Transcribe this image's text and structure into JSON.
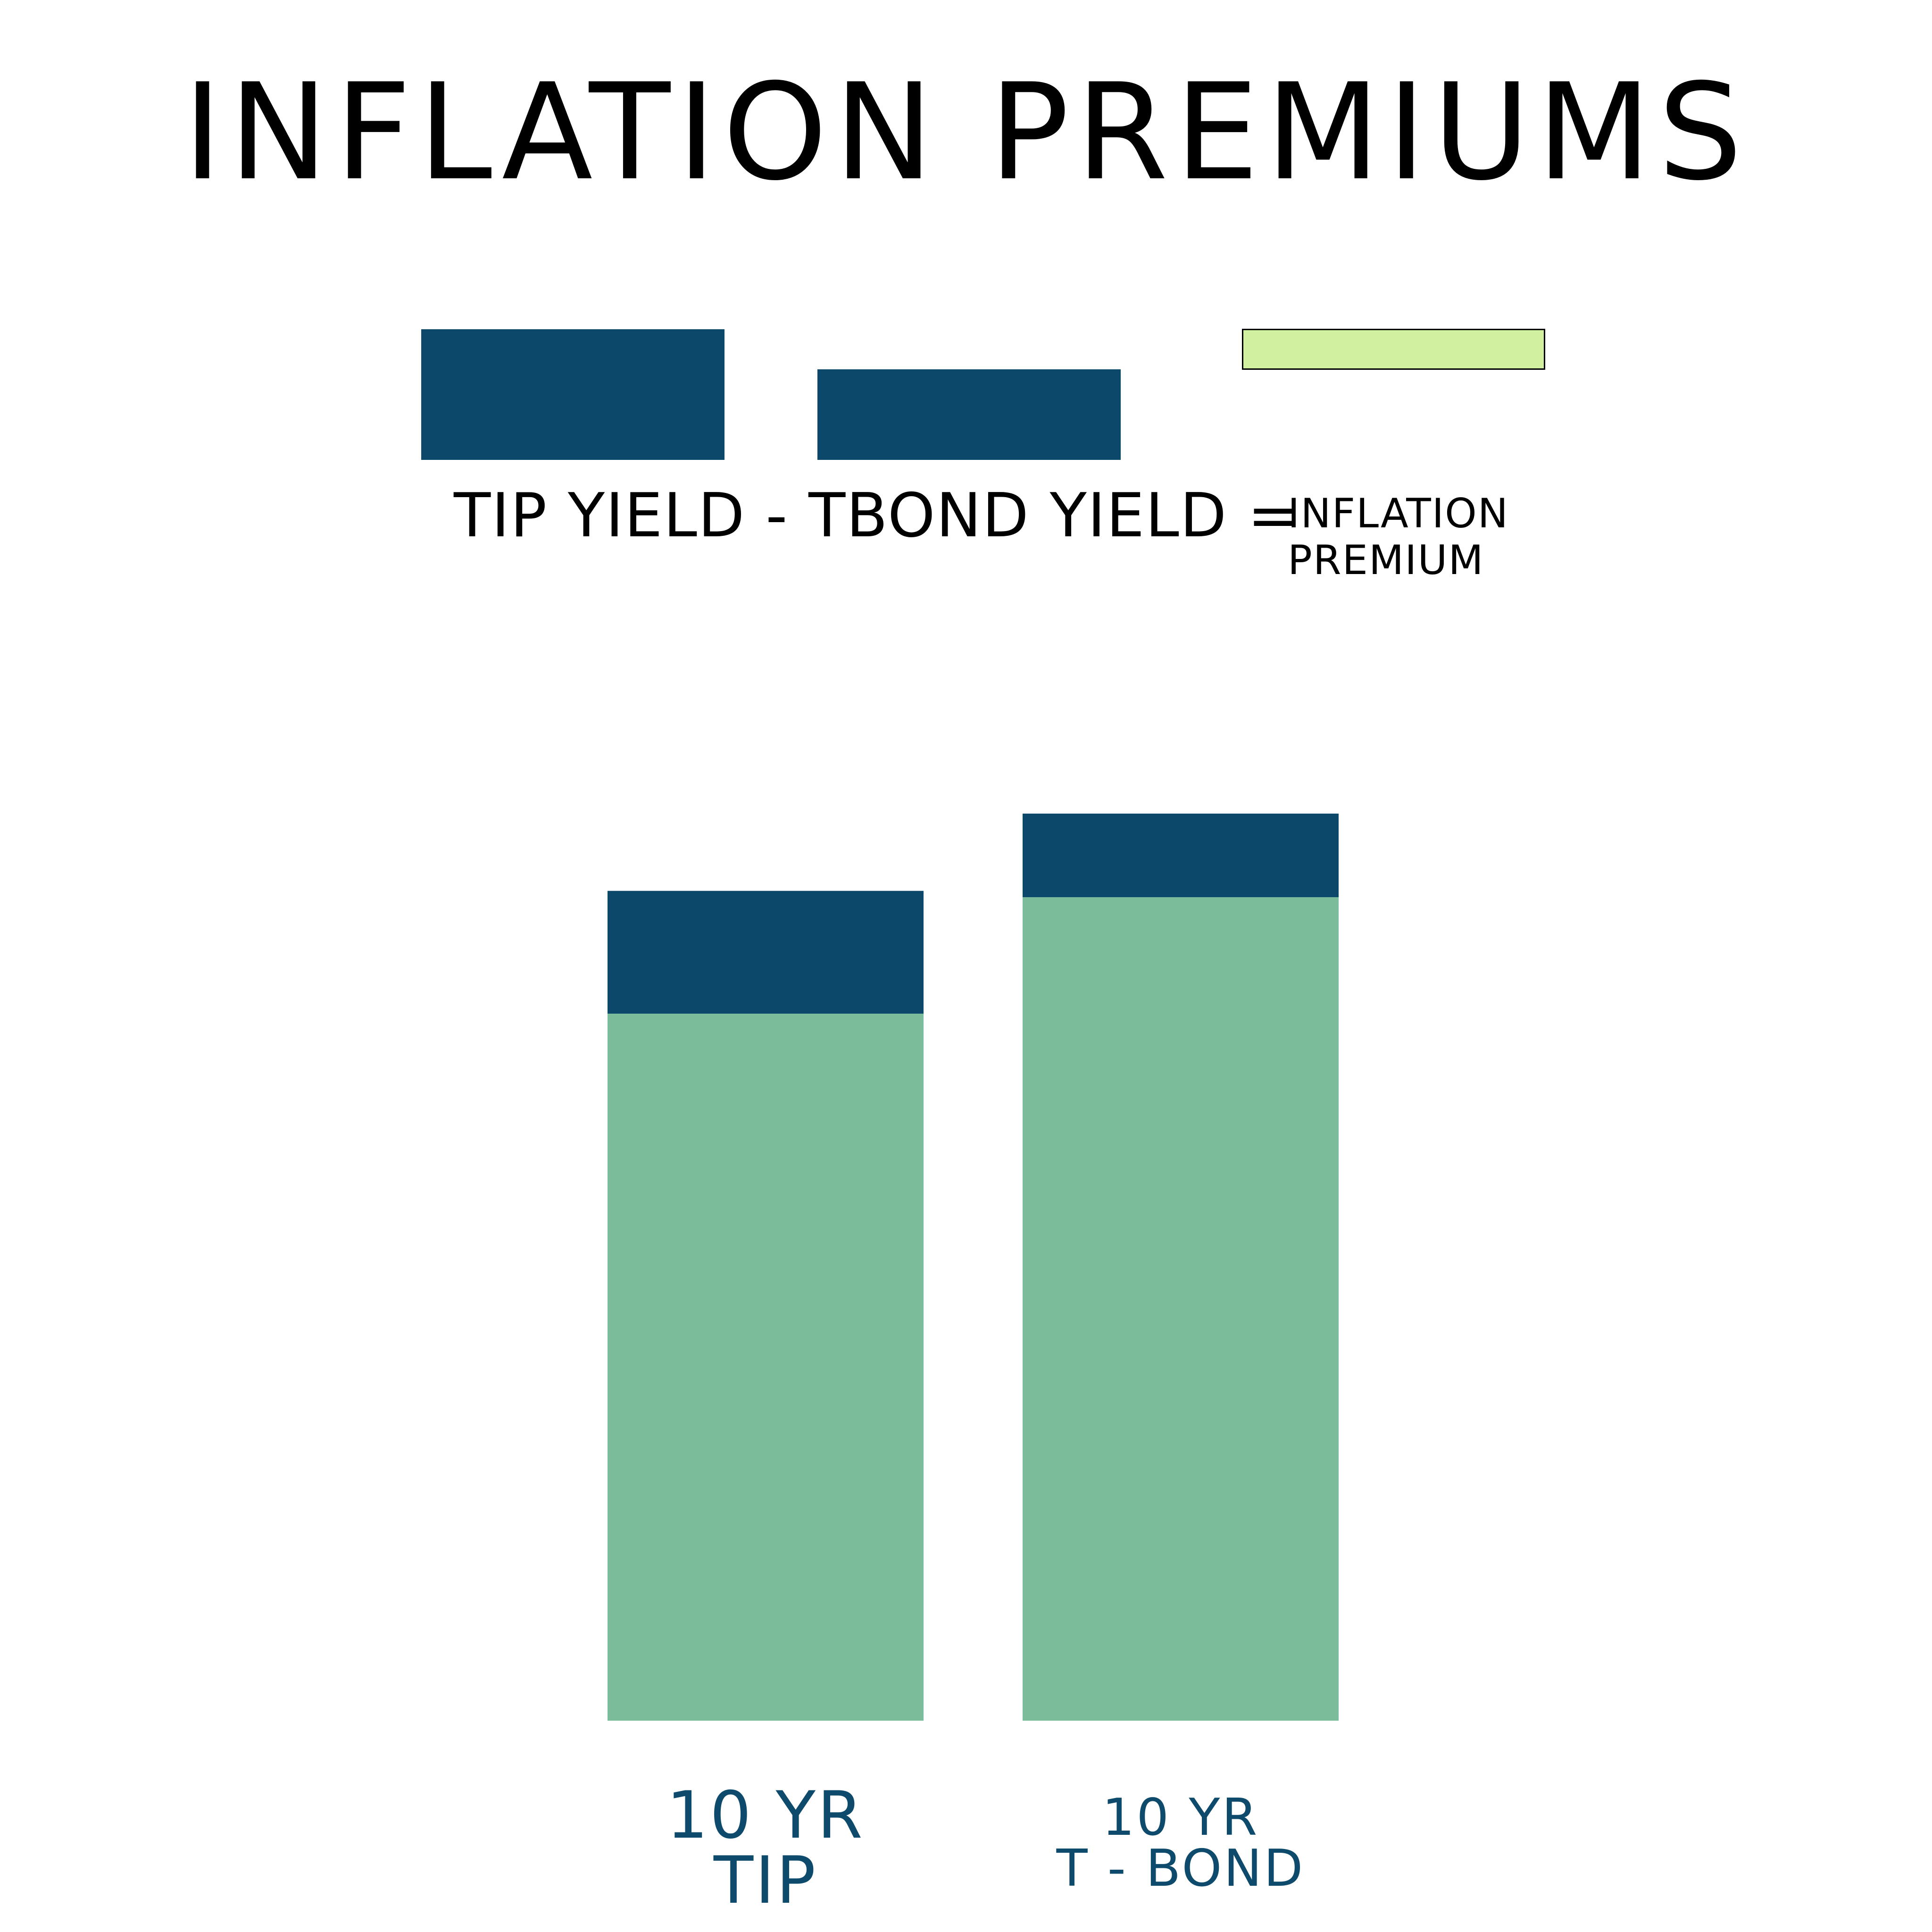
{
  "title": "INFLATION PREMIUMS",
  "legend": {
    "equation": "TIP YIELD - TBOND YIELD =",
    "premium_line1": "INFLATION",
    "premium_line2": "PREMIUM"
  },
  "colors": {
    "dark_blue": "#0b4869",
    "light_green": "#7bbd9b",
    "pale_green": "#d1f0a0",
    "label_blue": "#0d4a6b"
  },
  "chart_data": {
    "type": "bar",
    "stacked": true,
    "categories": [
      {
        "line1": "10 YR",
        "line2": "TIP"
      },
      {
        "line1": "10 YR",
        "line2": "T - BOND"
      }
    ],
    "series": [
      {
        "values": [
          66.8,
          77.8
        ],
        "color": "#7bbd9b"
      },
      {
        "values": [
          11.6,
          7.9
        ],
        "color": "#0b4869"
      }
    ],
    "ylim": [
      0,
      100
    ]
  }
}
